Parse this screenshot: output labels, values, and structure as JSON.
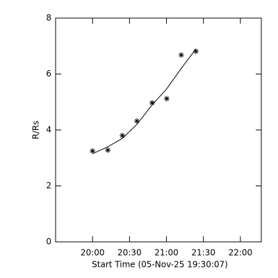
{
  "chart_data": {
    "type": "scatter",
    "x_label": "Start Time (05-Nov-25 19:30:07)",
    "y_label": "R/Rs",
    "xlim": [
      0,
      167
    ],
    "ylim": [
      0,
      8
    ],
    "xticks": [
      {
        "value": 30,
        "label": "20:00"
      },
      {
        "value": 60,
        "label": "20:30"
      },
      {
        "value": 90,
        "label": "21:00"
      },
      {
        "value": 120,
        "label": "21:30"
      },
      {
        "value": 150,
        "label": "22:00"
      }
    ],
    "yticks": [
      0,
      2,
      4,
      6,
      8
    ],
    "color": "#000000",
    "points": {
      "x": [
        30,
        42.4,
        54.2,
        66,
        78.4,
        90.2,
        102,
        113.9
      ],
      "values": [
        3.25,
        3.28,
        3.8,
        4.32,
        4.97,
        5.12,
        6.68,
        6.81
      ]
    },
    "fit": {
      "x": [
        30,
        42.4,
        54.2,
        66,
        78.4,
        90.2,
        102,
        113.9
      ],
      "values": [
        3.15,
        3.4,
        3.7,
        4.2,
        4.9,
        5.47,
        6.2,
        6.9
      ]
    }
  }
}
